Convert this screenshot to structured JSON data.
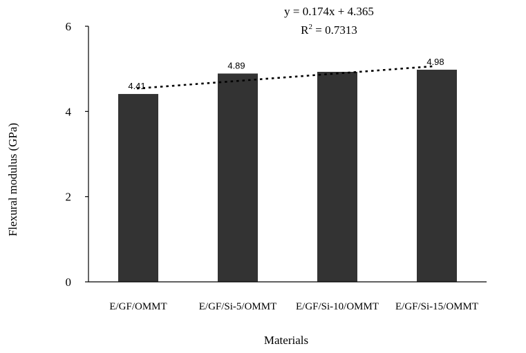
{
  "chart_data": {
    "type": "bar",
    "title": "",
    "xlabel": "Materials",
    "ylabel": "Flexural modulus (GPa)",
    "ylim": [
      0,
      6
    ],
    "yticks": [
      "0",
      "2",
      "4",
      "6"
    ],
    "grid": false,
    "categories": [
      "E/GF/OMMT",
      "E/GF/Si-5/OMMT",
      "E/GF/Si-10/OMMT",
      "E/GF/Si-15/OMMT"
    ],
    "values": [
      4.41,
      4.89,
      4.93,
      4.98
    ],
    "data_labels": [
      "4.41",
      "4.89",
      "",
      "4.98"
    ],
    "bar_color": "#333333",
    "trendline": {
      "type": "linear",
      "slope": 0.174,
      "intercept": 4.365,
      "equation": "y = 0.174x + 4.365",
      "r2_prefix": "R",
      "r2_exponent": "2",
      "r2_value": " = 0.7313",
      "style": "dotted"
    }
  }
}
